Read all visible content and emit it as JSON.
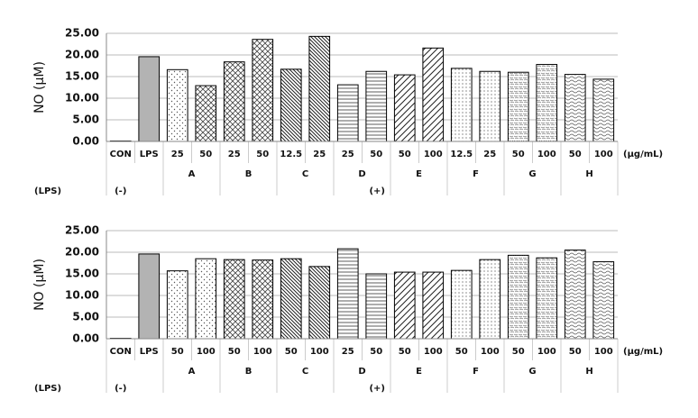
{
  "chart_data": [
    {
      "type": "bar",
      "ylabel": "NO (μM)",
      "categories": [
        "CON",
        "LPS",
        "25",
        "50",
        "25",
        "50",
        "12.5",
        "25",
        "25",
        "50",
        "50",
        "100",
        "12.5",
        "25",
        "50",
        "100",
        "50",
        "100"
      ],
      "values": [
        0.1,
        19.6,
        16.6,
        12.9,
        18.4,
        23.6,
        16.7,
        24.3,
        13.1,
        16.2,
        15.4,
        21.6,
        16.9,
        16.2,
        16.0,
        17.8,
        15.5,
        14.4
      ],
      "patterns": [
        "none",
        "gray",
        "dots",
        "cross",
        "cross",
        "cross",
        "back",
        "back",
        "horiz",
        "horiz",
        "fwd",
        "fwd",
        "fine",
        "fine",
        "speck",
        "speck",
        "wave",
        "wave"
      ],
      "groups": [
        "A",
        "B",
        "C",
        "D",
        "E",
        "F",
        "G",
        "H"
      ],
      "unit": "(μg/mL)",
      "lps_label": "(LPS)",
      "lps_minus": "(-)",
      "lps_plus": "(+)",
      "ylim": [
        0,
        25
      ],
      "yticks": [
        {
          "value": 0,
          "label": "0.00"
        },
        {
          "value": 5,
          "label": "5.00"
        },
        {
          "value": 10,
          "label": "10.00"
        },
        {
          "value": 15,
          "label": "15.00"
        },
        {
          "value": 20,
          "label": "20.00"
        },
        {
          "value": 25,
          "label": "25.00"
        }
      ],
      "grid": true
    },
    {
      "type": "bar",
      "ylabel": "NO (μM)",
      "categories": [
        "CON",
        "LPS",
        "50",
        "100",
        "50",
        "100",
        "50",
        "100",
        "25",
        "50",
        "50",
        "100",
        "50",
        "100",
        "50",
        "100",
        "50",
        "100"
      ],
      "values": [
        0.1,
        19.6,
        15.7,
        18.5,
        18.3,
        18.2,
        18.5,
        16.7,
        20.8,
        15.0,
        15.4,
        15.4,
        15.8,
        18.3,
        19.3,
        18.7,
        20.5,
        17.8
      ],
      "patterns": [
        "none",
        "gray",
        "dots",
        "dots",
        "cross",
        "cross",
        "back",
        "back",
        "horiz",
        "horiz",
        "fwd",
        "fwd",
        "fine",
        "fine",
        "speck",
        "speck",
        "wave",
        "wave"
      ],
      "groups": [
        "A",
        "B",
        "C",
        "D",
        "E",
        "F",
        "G",
        "H"
      ],
      "unit": "(μg/mL)",
      "lps_label": "(LPS)",
      "lps_minus": "(-)",
      "lps_plus": "(+)",
      "ylim": [
        0,
        25
      ],
      "yticks": [
        {
          "value": 0,
          "label": "0.00"
        },
        {
          "value": 5,
          "label": "5.00"
        },
        {
          "value": 10,
          "label": "10.00"
        },
        {
          "value": 15,
          "label": "15.00"
        },
        {
          "value": 20,
          "label": "20.00"
        },
        {
          "value": 25,
          "label": "25.00"
        }
      ],
      "grid": true
    }
  ]
}
